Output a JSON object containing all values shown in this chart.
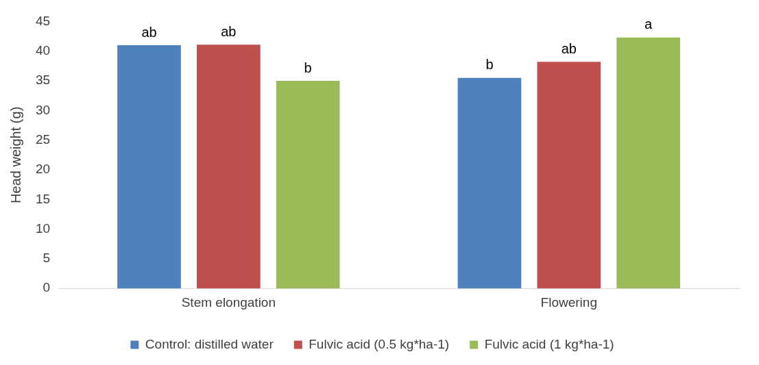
{
  "chart_data": {
    "type": "bar",
    "ylabel": "Head weight (g)",
    "categories": [
      "Stem elongation",
      "Flowering"
    ],
    "series": [
      {
        "name": "Control: distilled water",
        "color": "#4f81bd",
        "values": [
          41.0,
          35.5
        ],
        "value_labels": [
          "ab",
          "b"
        ]
      },
      {
        "name": "Fulvic acid (0.5 kg*ha-1)",
        "color": "#c0504d",
        "values": [
          41.1,
          38.2
        ],
        "value_labels": [
          "ab",
          "ab"
        ]
      },
      {
        "name": "Fulvic acid (1 kg*ha-1)",
        "color": "#9bbb59",
        "values": [
          35.0,
          42.3
        ],
        "value_labels": [
          "b",
          "a"
        ]
      }
    ],
    "ylim": [
      0,
      45
    ],
    "yticks": [
      0,
      5,
      10,
      15,
      20,
      25,
      30,
      35,
      40,
      45
    ],
    "grid": false,
    "legend": "bottom"
  }
}
